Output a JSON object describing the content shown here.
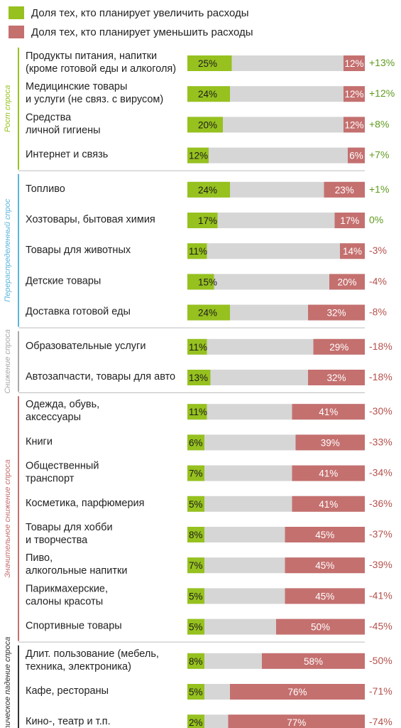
{
  "legend": {
    "increase_label": "Доля тех, кто планирует увеличить расходы",
    "decrease_label": "Доля тех, кто планирует уменьшить расходы",
    "increase_color": "#96c11f",
    "decrease_color": "#c4706f"
  },
  "colors": {
    "track": "#d6d6d6",
    "positive_diff": "#5f9a1e",
    "negative_diff": "#b4514c",
    "groups": [
      "#96c11f",
      "#5bb5dc",
      "#aaaaaa",
      "#c4706f",
      "#333333"
    ]
  },
  "chart_data": {
    "type": "bar",
    "xlim": [
      0,
      100
    ],
    "groups": [
      {
        "name": "Рост спроса",
        "rows": [
          {
            "label": [
              "Продукты питания, напитки",
              "(кроме готовой еды и алкоголя)"
            ],
            "increase": 25,
            "decrease": 12,
            "increase_text": "25%",
            "decrease_text": "12%",
            "diff": "+13%"
          },
          {
            "label": [
              "Медицинские товары",
              "и услуги (не связ. с вирусом)"
            ],
            "increase": 24,
            "decrease": 12,
            "increase_text": "24%",
            "decrease_text": "12%",
            "diff": "+12%"
          },
          {
            "label": [
              "Средства",
              "личной гигиены"
            ],
            "increase": 20,
            "decrease": 12,
            "increase_text": "20%",
            "decrease_text": "12%",
            "diff": "+8%"
          },
          {
            "label": [
              "Интернет и связь"
            ],
            "increase": 12,
            "decrease": 6,
            "increase_text": "12%",
            "decrease_text": "6%",
            "diff": "+7%"
          }
        ]
      },
      {
        "name": "Перераспределенный спрос",
        "rows": [
          {
            "label": [
              "Топливо"
            ],
            "increase": 24,
            "decrease": 23,
            "increase_text": "24%",
            "decrease_text": "23%",
            "diff": "+1%"
          },
          {
            "label": [
              "Хозтовары, бытовая химия"
            ],
            "increase": 17,
            "decrease": 17,
            "increase_text": "17%",
            "decrease_text": "17%",
            "diff": "0%"
          },
          {
            "label": [
              "Товары для животных"
            ],
            "increase": 11,
            "decrease": 14,
            "increase_text": "11%",
            "decrease_text": "14%",
            "diff": "-3%"
          },
          {
            "label": [
              "Детские товары"
            ],
            "increase": 15,
            "decrease": 20,
            "increase_text": "15%",
            "decrease_text": "20%",
            "diff": "-4%"
          },
          {
            "label": [
              "Доставка готовой еды"
            ],
            "increase": 24,
            "decrease": 32,
            "increase_text": "24%",
            "decrease_text": "32%",
            "diff": "-8%"
          }
        ]
      },
      {
        "name": "Снижение спроса",
        "rows": [
          {
            "label": [
              "Образовательные услуги"
            ],
            "increase": 11,
            "decrease": 29,
            "increase_text": "11%",
            "decrease_text": "29%",
            "diff": "-18%"
          },
          {
            "label": [
              "Автозапчасти, товары для авто"
            ],
            "increase": 13,
            "decrease": 32,
            "increase_text": "13%",
            "decrease_text": "32%",
            "diff": "-18%"
          }
        ]
      },
      {
        "name": "Значительное снижение спроса",
        "rows": [
          {
            "label": [
              "Одежда, обувь,",
              "аксессуары"
            ],
            "increase": 11,
            "decrease": 41,
            "increase_text": "11%",
            "decrease_text": "41%",
            "diff": "-30%"
          },
          {
            "label": [
              "Книги"
            ],
            "increase": 6,
            "decrease": 39,
            "increase_text": "6%",
            "decrease_text": "39%",
            "diff": "-33%"
          },
          {
            "label": [
              "Общественный",
              "транспорт"
            ],
            "increase": 7,
            "decrease": 41,
            "increase_text": "7%",
            "decrease_text": "41%",
            "diff": "-34%"
          },
          {
            "label": [
              "Косметика, парфюмерия"
            ],
            "increase": 5,
            "decrease": 41,
            "increase_text": "5%",
            "decrease_text": "41%",
            "diff": "-36%"
          },
          {
            "label": [
              "Товары для хобби",
              "и творчества"
            ],
            "increase": 8,
            "decrease": 45,
            "increase_text": "8%",
            "decrease_text": "45%",
            "diff": "-37%"
          },
          {
            "label": [
              "Пиво,",
              "алкогольные напитки"
            ],
            "increase": 7,
            "decrease": 45,
            "increase_text": "7%",
            "decrease_text": "45%",
            "diff": "-39%"
          },
          {
            "label": [
              "Парикмахерские,",
              "салоны красоты"
            ],
            "increase": 5,
            "decrease": 45,
            "increase_text": "5%",
            "decrease_text": "45%",
            "diff": "-41%"
          },
          {
            "label": [
              "Спортивные товары"
            ],
            "increase": 5,
            "decrease": 50,
            "increase_text": "5%",
            "decrease_text": "50%",
            "diff": "-45%"
          }
        ]
      },
      {
        "name": "Критическое падение спроса",
        "rows": [
          {
            "label": [
              "Длит. пользование (мебель,",
              "техника, электроника)"
            ],
            "increase": 8,
            "decrease": 58,
            "increase_text": "8%",
            "decrease_text": "58%",
            "diff": "-50%"
          },
          {
            "label": [
              "Кафе, рестораны"
            ],
            "increase": 5,
            "decrease": 76,
            "increase_text": "5%",
            "decrease_text": "76%",
            "diff": "-71%"
          },
          {
            "label": [
              "Кино-, театр и т.п."
            ],
            "increase": 2,
            "decrease": 77,
            "increase_text": "2%",
            "decrease_text": "77%",
            "diff": "-74%"
          }
        ]
      }
    ]
  }
}
